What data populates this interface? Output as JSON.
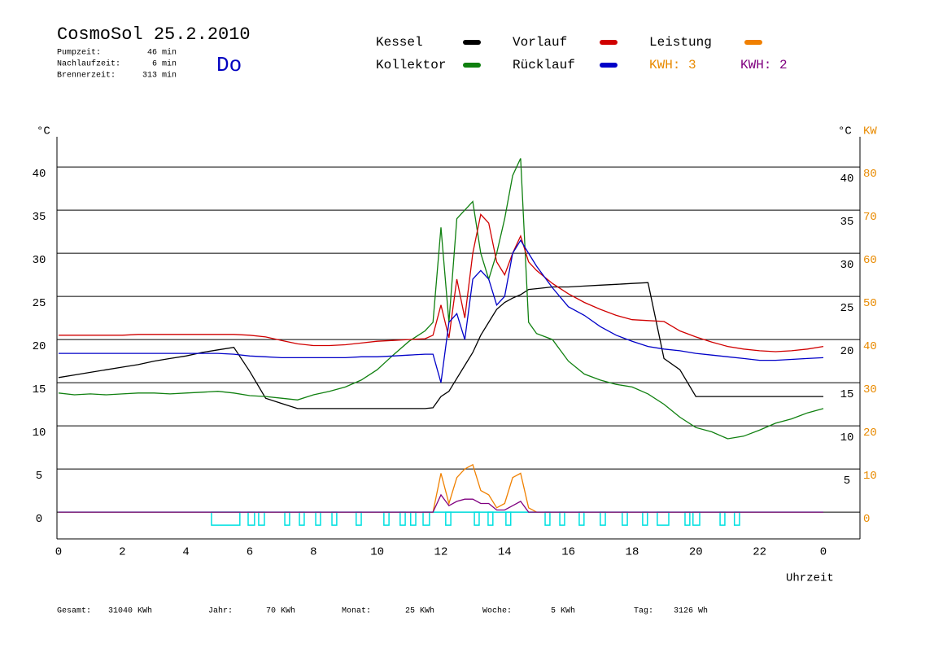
{
  "chart_data": {
    "type": "line",
    "title": "CosmoSol 25.2.2010",
    "weekday": "Do",
    "info": [
      {
        "label": "Pumpzeit:",
        "value": "46 min"
      },
      {
        "label": "Nachlaufzeit:",
        "value": "6 min"
      },
      {
        "label": "Brennerzeit:",
        "value": "313 min"
      }
    ],
    "y_label": "°C",
    "y2_label": "KW",
    "x_label": "Uhrzeit",
    "annotations": [
      {
        "text": "KWH: 3",
        "color": "#e88a00"
      }
    ],
    "x": [
      0,
      0.5,
      1,
      1.5,
      2,
      2.5,
      3,
      3.5,
      4,
      4.5,
      5,
      5.5,
      6,
      6.5,
      7,
      7.5,
      8,
      8.5,
      9,
      9.5,
      10,
      10.5,
      11,
      11.5,
      11.75,
      12,
      12.25,
      12.5,
      12.75,
      13,
      13.25,
      13.5,
      13.75,
      14,
      14.25,
      14.5,
      14.75,
      15,
      15.5,
      16,
      16.5,
      17,
      17.5,
      18,
      18.5,
      19,
      19.5,
      20,
      20.5,
      21,
      21.5,
      22,
      22.5,
      23,
      23.5,
      24
    ],
    "series": [
      {
        "name": "Kessel",
        "color": "#000000",
        "values": [
          15.6,
          15.9,
          16.2,
          16.5,
          16.8,
          17.1,
          17.5,
          17.8,
          18.1,
          18.5,
          18.8,
          19.1,
          16.3,
          13.2,
          12.6,
          12,
          12,
          12,
          12,
          12,
          12,
          12,
          12,
          12,
          12.1,
          13.4,
          14,
          15.5,
          17,
          18.5,
          20.5,
          22,
          23.5,
          24.3,
          24.8,
          25.2,
          25.8,
          25.9,
          26.1,
          26.1,
          26.2,
          26.3,
          26.4,
          26.5,
          26.6,
          17.8,
          16.5,
          13.4,
          13.4,
          13.4,
          13.4,
          13.4,
          13.4,
          13.4,
          13.4,
          13.4
        ]
      },
      {
        "name": "Kollektor",
        "color": "#108010",
        "values": [
          13.8,
          13.6,
          13.7,
          13.6,
          13.7,
          13.8,
          13.8,
          13.7,
          13.8,
          13.9,
          14,
          13.8,
          13.5,
          13.4,
          13.2,
          13,
          13.6,
          14,
          14.5,
          15.3,
          16.5,
          18.2,
          19.8,
          21,
          22,
          33,
          22,
          34,
          35,
          36,
          30,
          27,
          30,
          34,
          39,
          41,
          22,
          20.7,
          20,
          17.5,
          16,
          15.3,
          14.8,
          14.5,
          13.7,
          12.5,
          11,
          9.8,
          9.3,
          8.5,
          8.8,
          9.5,
          10.3,
          10.8,
          11.5,
          12
        ]
      },
      {
        "name": "Vorlauf",
        "color": "#d00000",
        "values": [
          20.5,
          20.5,
          20.5,
          20.5,
          20.5,
          20.6,
          20.6,
          20.6,
          20.6,
          20.6,
          20.6,
          20.6,
          20.5,
          20.3,
          19.9,
          19.5,
          19.3,
          19.3,
          19.4,
          19.6,
          19.8,
          19.9,
          20,
          20.1,
          20.5,
          24,
          20.2,
          27,
          22.5,
          30,
          34.5,
          33.5,
          29,
          27.5,
          30,
          32,
          29,
          28,
          26.5,
          25.3,
          24.3,
          23.5,
          22.8,
          22.3,
          22.2,
          22.1,
          21,
          20.3,
          19.7,
          19.2,
          18.9,
          18.7,
          18.6,
          18.7,
          18.9,
          19.2
        ]
      },
      {
        "name": "Rücklauf",
        "color": "#0000c8",
        "values": [
          18.4,
          18.4,
          18.4,
          18.4,
          18.4,
          18.4,
          18.4,
          18.4,
          18.4,
          18.4,
          18.4,
          18.3,
          18.1,
          18,
          17.9,
          17.9,
          17.9,
          17.9,
          17.9,
          18,
          18,
          18.1,
          18.2,
          18.3,
          18.3,
          15,
          22,
          23,
          20,
          27,
          28,
          27,
          24,
          25,
          30,
          31.5,
          30,
          28.5,
          26,
          23.8,
          22.8,
          21.5,
          20.5,
          19.8,
          19.2,
          18.9,
          18.7,
          18.4,
          18.2,
          18,
          17.8,
          17.6,
          17.6,
          17.7,
          17.8,
          17.9
        ]
      },
      {
        "name": "Leistung",
        "color": "#f08000",
        "axis": "y2",
        "values": [
          0,
          0,
          0,
          0,
          0,
          0,
          0,
          0,
          0,
          0,
          0,
          0,
          0,
          0,
          0,
          0,
          0,
          0,
          0,
          0,
          0,
          0,
          0,
          0,
          0,
          9,
          2,
          8,
          10,
          11,
          5,
          4,
          1,
          2,
          8,
          9,
          1,
          0,
          0,
          0,
          0,
          0,
          0,
          0,
          0,
          0,
          0,
          0,
          0,
          0,
          0,
          0,
          0,
          0,
          0,
          0
        ]
      },
      {
        "name": "KWH: 2",
        "color": "#800080",
        "axis": "y2",
        "values": [
          0,
          0,
          0,
          0,
          0,
          0,
          0,
          0,
          0,
          0,
          0,
          0,
          0,
          0,
          0,
          0,
          0,
          0,
          0,
          0,
          0,
          0,
          0,
          0,
          0,
          4,
          1.5,
          2.5,
          3,
          3,
          2,
          2,
          0.5,
          0.5,
          1.5,
          2.5,
          0,
          0,
          0,
          0,
          0,
          0,
          0,
          0,
          0,
          0,
          0,
          0,
          0,
          0,
          0,
          0,
          0,
          0,
          0,
          0
        ]
      }
    ],
    "pump": [
      [
        4.8,
        5.69
      ],
      [
        5.95,
        6.15
      ],
      [
        6.28,
        6.46
      ],
      [
        7.1,
        7.25
      ],
      [
        7.56,
        7.71
      ],
      [
        8.07,
        8.22
      ],
      [
        8.58,
        8.73
      ],
      [
        9.34,
        9.5
      ],
      [
        10.21,
        10.37
      ],
      [
        10.72,
        10.88
      ],
      [
        11.05,
        11.21
      ],
      [
        11.44,
        11.64
      ],
      [
        12.15,
        12.31
      ],
      [
        13.05,
        13.2
      ],
      [
        13.48,
        13.63
      ],
      [
        14.04,
        14.19
      ],
      [
        15.27,
        15.42
      ],
      [
        15.73,
        15.88
      ],
      [
        16.34,
        16.49
      ],
      [
        17.0,
        17.16
      ],
      [
        17.69,
        17.85
      ],
      [
        18.33,
        18.48
      ],
      [
        18.79,
        19.15
      ],
      [
        19.66,
        19.81
      ],
      [
        19.91,
        20.12
      ],
      [
        20.76,
        20.91
      ],
      [
        21.21,
        21.37
      ]
    ],
    "pump_color": "#00e0e0",
    "xlim": [
      -0.05,
      25.15
    ],
    "xticks": [
      0,
      2,
      4,
      6,
      8,
      10,
      12,
      14,
      16,
      18,
      20,
      22,
      {
        "value": 24,
        "label": "0"
      }
    ],
    "ylim": [
      -3.1,
      43.5
    ],
    "yticks": [
      0,
      5,
      10,
      15,
      20,
      25,
      30,
      35,
      40
    ],
    "y2lim": [
      -6.2,
      87
    ],
    "y2ticks": [
      0,
      10,
      20,
      30,
      40,
      50,
      60,
      70,
      80
    ],
    "y2_color": "#e88a00",
    "grid": true,
    "footer": [
      {
        "label": "Gesamt:",
        "value": "31040 KWh"
      },
      {
        "label": "Jahr:",
        "value": "70 KWh"
      },
      {
        "label": "Monat:",
        "value": "25 KWh"
      },
      {
        "label": "Woche:",
        "value": "5 KWh"
      },
      {
        "label": "Tag:",
        "value": "3126 Wh"
      }
    ]
  }
}
